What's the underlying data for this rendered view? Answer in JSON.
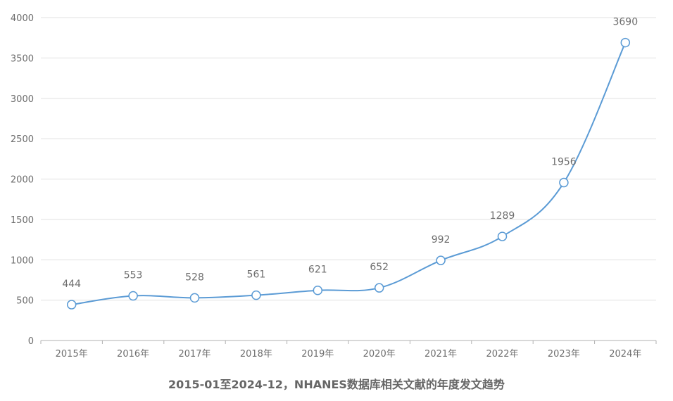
{
  "chart_data": {
    "type": "line",
    "title": "2015-01至2024-12，NHANES数据库相关文献的年度发文趋势",
    "categories": [
      "2015年",
      "2016年",
      "2017年",
      "2018年",
      "2019年",
      "2020年",
      "2021年",
      "2022年",
      "2023年",
      "2024年"
    ],
    "series": [
      {
        "values": [
          444,
          553,
          528,
          561,
          621,
          652,
          992,
          1289,
          1956,
          3690
        ]
      }
    ],
    "yticks": [
      0,
      500,
      1000,
      1500,
      2000,
      2500,
      3000,
      3500,
      4000
    ],
    "ylim": [
      0,
      4000
    ],
    "grid": true,
    "legend": "none",
    "colors": {
      "line": "#5b9bd5",
      "marker_fill": "#ffffff",
      "grid": "#e0e0e0",
      "axis": "#b0b0b0",
      "text": "#6e6e6e"
    }
  }
}
